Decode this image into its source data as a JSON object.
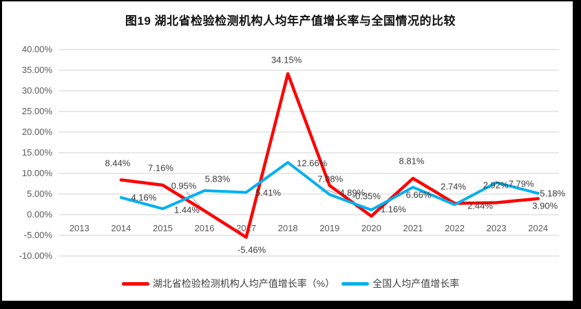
{
  "chart_data": {
    "type": "line",
    "title": "图19 湖北省检验检测机构人均年产值增长率与全国情况的比较",
    "categories": [
      "2013",
      "2014",
      "2015",
      "2016",
      "2017",
      "2018",
      "2019",
      "2020",
      "2021",
      "2022",
      "2023",
      "2024"
    ],
    "y_ticks": [
      "40.00%",
      "35.00%",
      "30.00%",
      "25.00%",
      "20.00%",
      "15.00%",
      "10.00%",
      "5.00%",
      "0.00%",
      "-5.00%",
      "-10.00%"
    ],
    "ylim": [
      -10,
      40
    ],
    "y_step": 5,
    "grid": true,
    "legend_position": "bottom",
    "series": [
      {
        "name": "湖北省检验检测机构人均产值增长率（%）",
        "color": "#FE0000",
        "values": [
          null,
          8.44,
          7.16,
          0.95,
          -5.46,
          34.15,
          7.08,
          -0.35,
          8.81,
          2.74,
          2.92,
          3.9
        ],
        "labels": [
          "",
          "8.44%",
          "7.16%",
          "0.95%",
          "-5.46%",
          "34.15%",
          "7.08%",
          "-0.35%",
          "8.81%",
          "2.74%",
          "2.92%",
          "3.90%"
        ]
      },
      {
        "name": "全国人均产值增长率",
        "color": "#00B0F0",
        "values": [
          null,
          4.16,
          1.44,
          5.83,
          5.41,
          12.66,
          4.89,
          1.16,
          6.66,
          2.44,
          7.79,
          5.18
        ],
        "labels": [
          "",
          "4.16%",
          "1.44%",
          "5.83%",
          "5.41%",
          "12.66%",
          "4.89%",
          "1.16%",
          "6.66%",
          "2.44%",
          "7.79%",
          "5.18%"
        ]
      }
    ],
    "label_offsets": [
      [
        [
          0,
          0
        ],
        [
          -5,
          -24
        ],
        [
          -3,
          -25
        ],
        [
          -30,
          -36
        ],
        [
          8,
          18
        ],
        [
          -2,
          -20
        ],
        [
          1,
          -10
        ],
        [
          -7,
          -29
        ],
        [
          -2,
          -25
        ],
        [
          -2,
          -25
        ],
        [
          -1,
          -25
        ],
        [
          10,
          10
        ]
      ],
      [
        [
          0,
          0
        ],
        [
          33,
          0
        ],
        [
          35,
          2
        ],
        [
          19,
          -17
        ],
        [
          32,
          0
        ],
        [
          35,
          1
        ],
        [
          33,
          -3
        ],
        [
          32,
          -1
        ],
        [
          8,
          11
        ],
        [
          37,
          2
        ],
        [
          36,
          2
        ],
        [
          21,
          0
        ]
      ]
    ],
    "colors": {
      "grid": "#D9D9D9",
      "axis_text": "#595959",
      "data_label_text": "#3A3A3A",
      "leader": "#ABABAB",
      "background": "#FFFFFF",
      "border": "#000000"
    }
  }
}
